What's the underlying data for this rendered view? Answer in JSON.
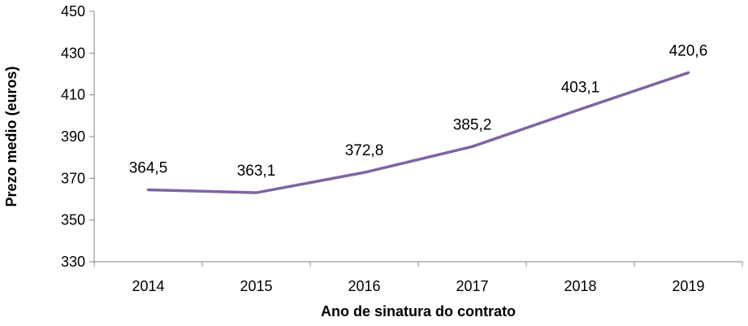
{
  "chart_data": {
    "type": "line",
    "categories": [
      "2014",
      "2015",
      "2016",
      "2017",
      "2018",
      "2019"
    ],
    "series": [
      {
        "values": [
          364.5,
          363.1,
          372.8,
          385.2,
          403.1,
          420.6
        ],
        "labels": [
          "364,5",
          "363,1",
          "372,8",
          "385,2",
          "403,1",
          "420,6"
        ],
        "color": "#8064a2"
      }
    ],
    "xlabel": "Ano de sinatura do contrato",
    "ylabel": "Prezo medio (euros)",
    "ylim": [
      330,
      450
    ],
    "yticks": [
      330,
      350,
      370,
      390,
      410,
      430,
      450
    ],
    "ytick_labels": [
      "330",
      "350",
      "370",
      "390",
      "410",
      "430",
      "450"
    ],
    "grid": false,
    "legend": "none",
    "axis_color": "#868686"
  }
}
